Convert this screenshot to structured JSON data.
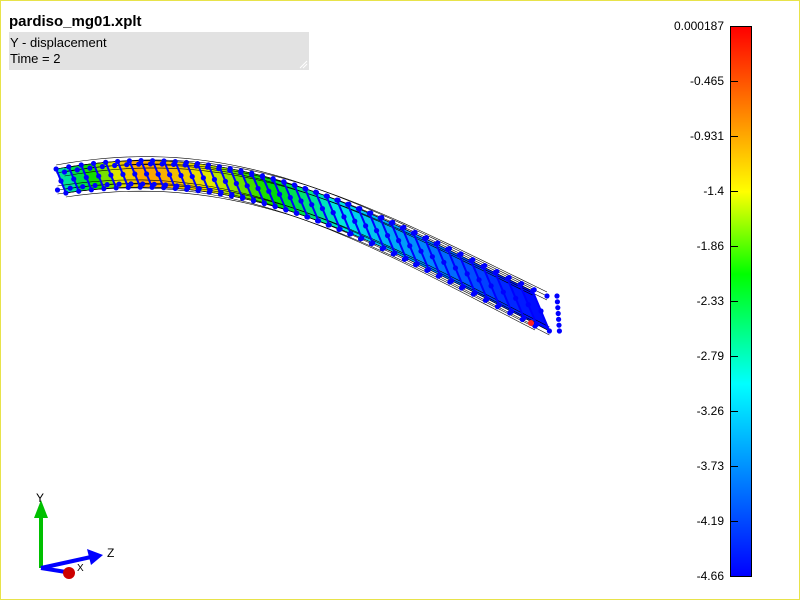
{
  "viewer": {
    "file_title": "pardiso_mg01.xplt",
    "field_label": "Y - displacement",
    "time_label": "Time = 2"
  },
  "colorbar": {
    "ticks": [
      "0.000187",
      "-0.465",
      "-0.931",
      "-1.4",
      "-1.86",
      "-2.33",
      "-2.79",
      "-3.26",
      "-3.73",
      "-4.19",
      "-4.66"
    ],
    "gradient_colors": [
      "#ff0000",
      "#ffff00",
      "#00ff00",
      "#00ffff",
      "#0000ff"
    ]
  },
  "triad": {
    "y_label": "Y",
    "z_label": "Z",
    "x_label": "X",
    "y_color": "#00c000",
    "z_color": "#0000ff",
    "x_color": "#cc0000"
  },
  "icons": [
    "resize-grip-icon",
    "axis-triad-icon"
  ]
}
